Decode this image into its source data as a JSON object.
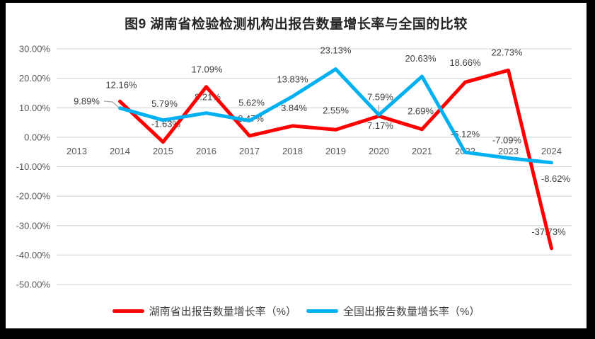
{
  "window": {
    "frame_color": "#000000",
    "surface_color": "#ffffff"
  },
  "chart_data": {
    "type": "line",
    "title": "图9 湖南省检验检测机构出报告数量增长率与全国的比较",
    "categories": [
      "2013",
      "2014",
      "2015",
      "2016",
      "2017",
      "2018",
      "2019",
      "2020",
      "2021",
      "2022",
      "2023",
      "2024"
    ],
    "series": [
      {
        "name": "湖南省出报告数量增长率（%）",
        "color": "#ff0000",
        "values": [
          null,
          12.16,
          -1.63,
          17.09,
          0.47,
          3.84,
          2.55,
          7.17,
          2.69,
          18.66,
          22.73,
          -37.73
        ],
        "labels": [
          "",
          "12.16%",
          "-1.63%",
          "17.09%",
          "0.47%",
          "3.84%",
          "2.55%",
          "7.17%",
          "2.69%",
          "18.66%",
          "22.73%",
          "-37.73%"
        ]
      },
      {
        "name": "全国出报告数量增长率（%）",
        "color": "#00b0f0",
        "values": [
          null,
          9.89,
          5.79,
          8.21,
          5.62,
          13.83,
          23.13,
          7.59,
          20.63,
          -5.12,
          -7.09,
          -8.62
        ],
        "labels": [
          "",
          "9.89%",
          "5.79%",
          "8.21%",
          "5.62%",
          "13.83%",
          "23.13%",
          "7.59%",
          "20.63%",
          "-5.12%",
          "-7.09%",
          "-8.62%"
        ]
      }
    ],
    "y_ticks": [
      "30.00%",
      "20.00%",
      "10.00%",
      "0.00%",
      "-10.00%",
      "-20.00%",
      "-30.00%",
      "-40.00%",
      "-50.00%"
    ],
    "ylim": [
      -50,
      30
    ],
    "y_step": 10,
    "grid": true,
    "legend_position": "bottom",
    "colors": {
      "gridline": "#d9d9d9",
      "axis_text": "#595959",
      "data_label_text": "#3f3f3f",
      "title_text": "#262626",
      "leader_line": "#a6a6a6"
    }
  }
}
